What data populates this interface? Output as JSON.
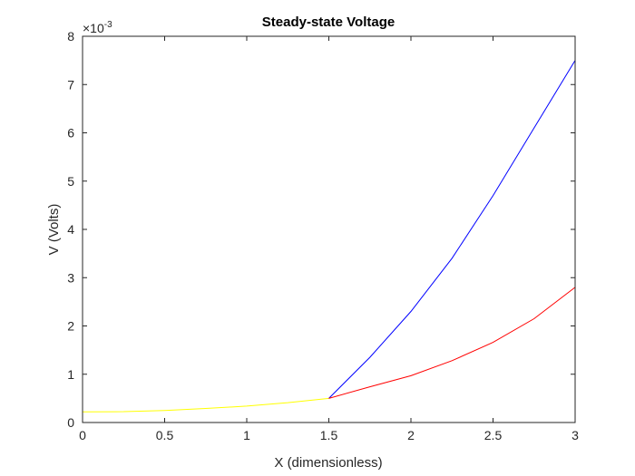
{
  "chart_data": {
    "type": "line",
    "title": "Steady-state Voltage",
    "xlabel": "X (dimensionless)",
    "ylabel": "V (Volts)",
    "xlim": [
      0,
      3
    ],
    "ylim": [
      0,
      0.008
    ],
    "y_exponent_label": {
      "base": "×10",
      "exponent": "-3"
    },
    "x_ticks": [
      {
        "value": 0,
        "label": "0"
      },
      {
        "value": 0.5,
        "label": "0.5"
      },
      {
        "value": 1,
        "label": "1"
      },
      {
        "value": 1.5,
        "label": "1.5"
      },
      {
        "value": 2,
        "label": "2"
      },
      {
        "value": 2.5,
        "label": "2.5"
      },
      {
        "value": 3,
        "label": "3"
      }
    ],
    "y_ticks": [
      {
        "value": 0,
        "label": "0"
      },
      {
        "value": 0.001,
        "label": "1"
      },
      {
        "value": 0.002,
        "label": "2"
      },
      {
        "value": 0.003,
        "label": "3"
      },
      {
        "value": 0.004,
        "label": "4"
      },
      {
        "value": 0.005,
        "label": "5"
      },
      {
        "value": 0.006,
        "label": "6"
      },
      {
        "value": 0.007,
        "label": "7"
      },
      {
        "value": 0.008,
        "label": "8"
      }
    ],
    "grid": false,
    "series": [
      {
        "color": "#ffff00",
        "x": [
          0,
          0.25,
          0.5,
          0.75,
          1.0,
          1.25,
          1.5
        ],
        "y": [
          0.00022,
          0.000225,
          0.00025,
          0.00029,
          0.00034,
          0.00041,
          0.0005
        ]
      },
      {
        "color": "#0000ff",
        "x": [
          1.5,
          1.75,
          2.0,
          2.25,
          2.5,
          2.75,
          3.0
        ],
        "y": [
          0.0005,
          0.00135,
          0.0023,
          0.0034,
          0.0047,
          0.0061,
          0.0075
        ]
      },
      {
        "color": "#ff0000",
        "x": [
          1.5,
          1.75,
          2.0,
          2.25,
          2.5,
          2.75,
          3.0
        ],
        "y": [
          0.0005,
          0.00074,
          0.00097,
          0.00128,
          0.00166,
          0.00215,
          0.0028
        ]
      }
    ]
  }
}
